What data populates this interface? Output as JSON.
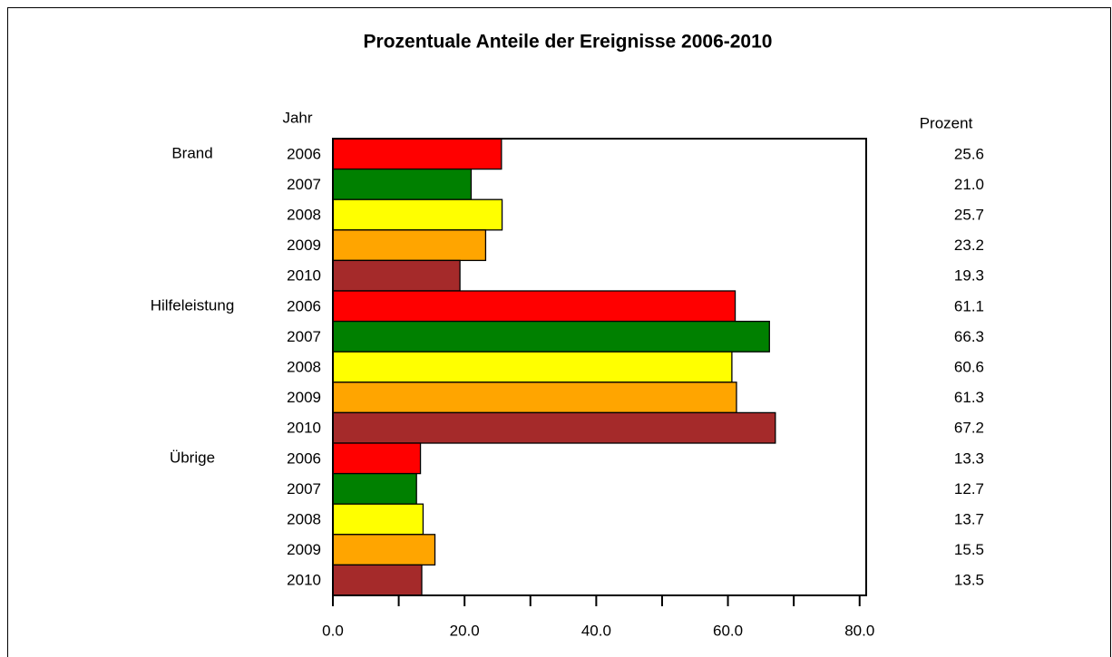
{
  "chart_data": {
    "type": "hbar",
    "title": "Prozentuale Anteile der Ereignisse 2006-2010",
    "y_label": "Jahr",
    "value_column_label": "Prozent",
    "categories": [
      "Brand",
      "Hilfeleistung",
      "Übrige"
    ],
    "series": [
      {
        "name": "2006",
        "color": "#ff0000",
        "values": [
          25.6,
          61.1,
          13.3
        ],
        "value_labels": [
          "25.6",
          "61.1",
          "13.3"
        ]
      },
      {
        "name": "2007",
        "color": "#008000",
        "values": [
          21.0,
          66.3,
          12.7
        ],
        "value_labels": [
          "21.0",
          "66.3",
          "12.7"
        ]
      },
      {
        "name": "2008",
        "color": "#ffff00",
        "values": [
          25.7,
          60.6,
          13.7
        ],
        "value_labels": [
          "25.7",
          "60.6",
          "13.7"
        ]
      },
      {
        "name": "2009",
        "color": "#ffa500",
        "values": [
          23.2,
          61.3,
          15.5
        ],
        "value_labels": [
          "23.2",
          "61.3",
          "15.5"
        ]
      },
      {
        "name": "2010",
        "color": "#a52a2a",
        "values": [
          19.3,
          67.2,
          13.5
        ],
        "value_labels": [
          "19.3",
          "67.2",
          "13.5"
        ]
      }
    ],
    "xlim": [
      0,
      81
    ],
    "xticks": [
      {
        "value": 0,
        "label": "0.0"
      },
      {
        "value": 20,
        "label": "20.0"
      },
      {
        "value": 40,
        "label": "40.0"
      },
      {
        "value": 60,
        "label": "60.0"
      },
      {
        "value": 80,
        "label": "80.0"
      }
    ],
    "minor_xticks": [
      10,
      30,
      50,
      70
    ]
  }
}
